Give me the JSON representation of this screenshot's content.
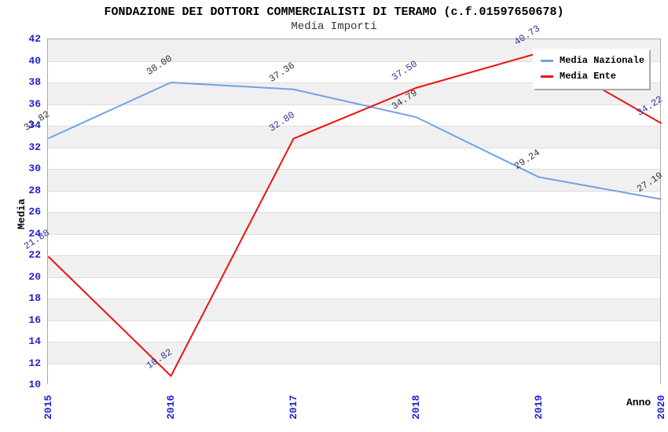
{
  "chart_data": {
    "type": "line",
    "title": "FONDAZIONE DEI DOTTORI COMMERCIALISTI DI TERAMO (c.f.01597650678)",
    "subtitle": "Media Importi",
    "xlabel": "Anno",
    "ylabel": "Media",
    "categories": [
      "2015",
      "2016",
      "2017",
      "2018",
      "2019",
      "2020"
    ],
    "series": [
      {
        "name": "Media Nazionale",
        "color": "#6FA3E0",
        "label_color": "#333333",
        "values": [
          32.82,
          38.0,
          37.36,
          34.79,
          29.24,
          27.19
        ]
      },
      {
        "name": "Media Ente",
        "color": "#EE1111",
        "label_color": "#333399",
        "values": [
          21.88,
          10.82,
          32.8,
          37.5,
          40.73,
          34.22
        ]
      }
    ],
    "ylim": [
      10,
      42
    ],
    "ytick_step": 2,
    "grid": "horizontal-bands",
    "legend_position": "top-right",
    "colors": {
      "axis_tick_label": "#2222CC",
      "band_fill": "#F0F0F0",
      "gridline": "#DDDDDD",
      "plot_border": "#AAAAAA",
      "background": "#FFFFFF"
    }
  }
}
